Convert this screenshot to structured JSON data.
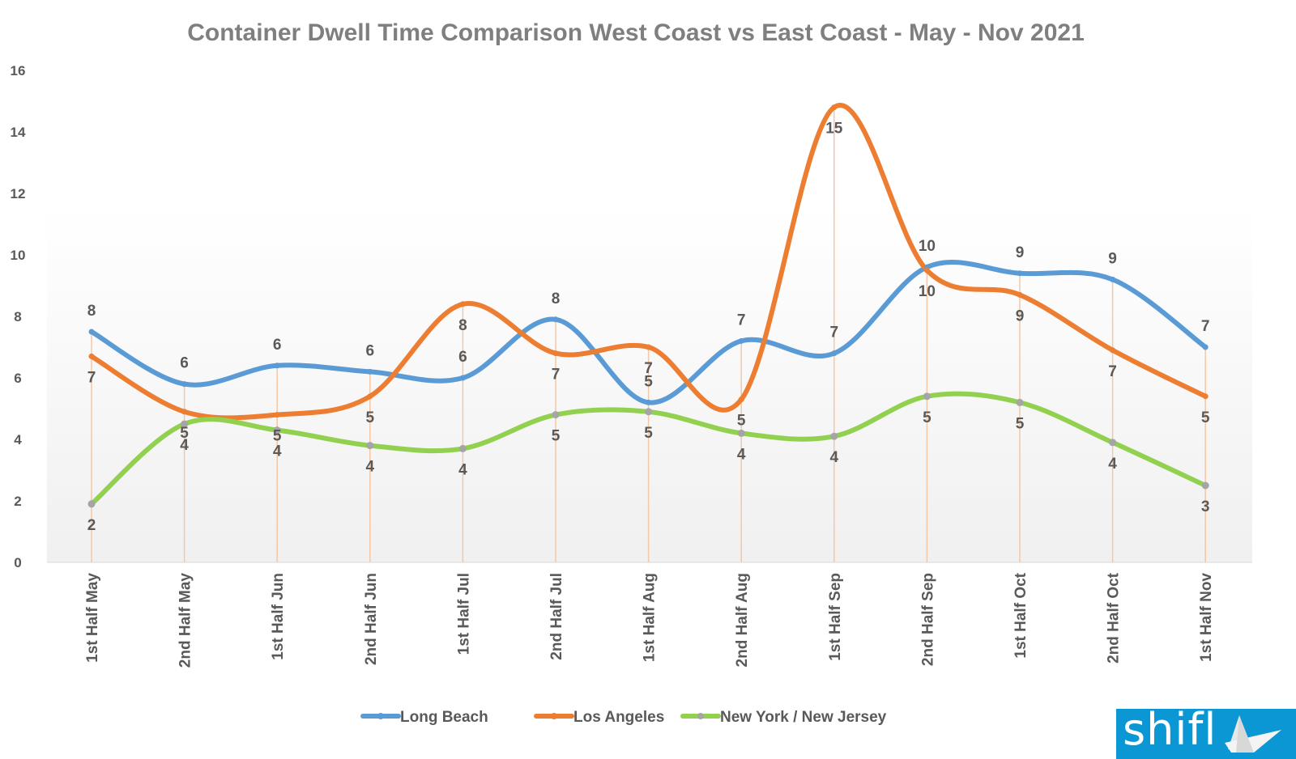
{
  "chart_data": {
    "type": "line",
    "title": "Container Dwell Time Comparison West Coast vs East Coast - May - Nov 2021",
    "xlabel": "",
    "ylabel": "",
    "ylim": [
      0,
      16
    ],
    "yticks": [
      0,
      2,
      4,
      6,
      8,
      10,
      12,
      14,
      16
    ],
    "grid": false,
    "legend": "bottom",
    "smooth": true,
    "drop_lines": true,
    "categories": [
      "1st Half May",
      "2nd Half May",
      "1st Half Jun",
      "2nd Half Jun",
      "1st Half Jul",
      "2nd Half Jul",
      "1st Half Aug",
      "2nd Half Aug",
      "1st Half Sep",
      "2nd Half Sep",
      "1st Half Oct",
      "2nd Half Oct",
      "1st Half Nov"
    ],
    "series": [
      {
        "name": "Long Beach",
        "color": "#5b9bd5",
        "values": [
          7.5,
          5.8,
          6.4,
          6.2,
          6.0,
          7.9,
          5.2,
          7.2,
          6.8,
          9.6,
          9.4,
          9.2,
          7.0
        ],
        "labels": [
          "8",
          "6",
          "6",
          "6",
          "6",
          "8",
          "5",
          "7",
          "7",
          "10",
          "9",
          "9",
          "7"
        ]
      },
      {
        "name": "Los Angeles",
        "color": "#ed7d31",
        "values": [
          6.7,
          4.9,
          4.8,
          5.4,
          8.4,
          6.8,
          7.0,
          5.3,
          14.8,
          9.5,
          8.7,
          6.9,
          5.4
        ],
        "labels": [
          "7",
          "5",
          "5",
          "5",
          "8",
          "7",
          "7",
          "5",
          "15",
          "10",
          "9",
          "7",
          "5"
        ]
      },
      {
        "name": "New York / New Jersey",
        "color": "#92d050",
        "values": [
          1.9,
          4.5,
          4.3,
          3.8,
          3.7,
          4.8,
          4.9,
          4.2,
          4.1,
          5.4,
          5.2,
          3.9,
          2.5
        ],
        "labels": [
          "2",
          "4",
          "4",
          "4",
          "4",
          "5",
          "5",
          "4",
          "4",
          "5",
          "5",
          "4",
          "3"
        ]
      }
    ]
  },
  "logo": {
    "text": "shifl",
    "color": "#0b96d4"
  }
}
